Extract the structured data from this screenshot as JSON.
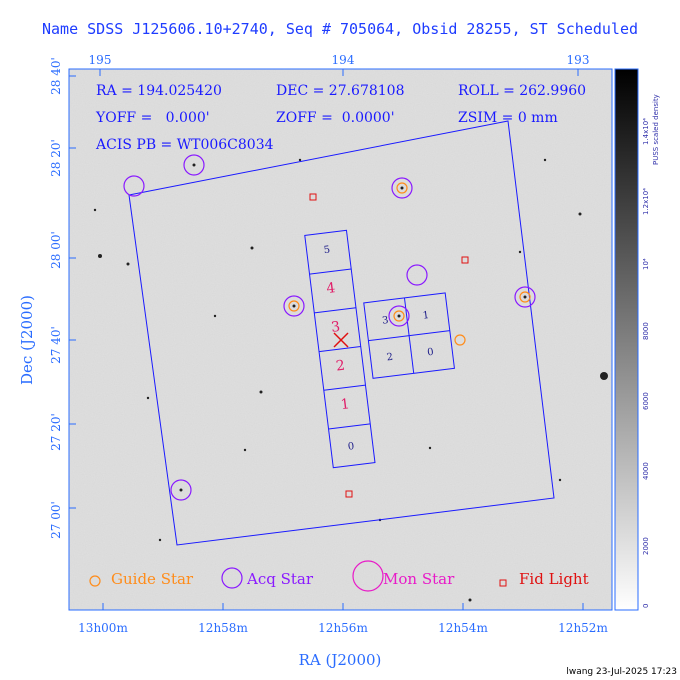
{
  "title": "Name SDSS J125606.10+2740, Seq # 705064, Obsid 28255, ST Scheduled",
  "header": {
    "ra": "RA = 194.025420",
    "dec": "DEC = 27.678108",
    "roll": "ROLL = 262.9960",
    "yoff": "YOFF =   0.000'",
    "zoff": "ZOFF =  0.0000'",
    "zsim": "ZSIM = 0 mm",
    "acis": "ACIS PB = WT006C8034"
  },
  "axes": {
    "xlabel": "RA (J2000)",
    "ylabel": "Dec (J2000)",
    "bottom_ticks": [
      "13h00m",
      "12h58m",
      "12h56m",
      "12h54m",
      "12h52m"
    ],
    "top_ticks": [
      "195",
      "194",
      "193"
    ],
    "left_ticks": [
      "28 40'",
      "28 20'",
      "28 00'",
      "27 40'",
      "27 20'",
      "27 00'"
    ]
  },
  "colorbar": {
    "label": "PUSS scaled density",
    "ticks": [
      "0",
      "2000",
      "4000",
      "6000",
      "8000",
      "10⁴",
      "1.2x10⁴",
      "1.4x10⁴"
    ]
  },
  "ccds": [
    "0",
    "1",
    "2",
    "3",
    "4",
    "5",
    "2",
    "3",
    "0",
    "1"
  ],
  "legend": {
    "guide": "Guide Star",
    "acq": "Acq Star",
    "mon": "Mon Star",
    "fid": "Fid Light"
  },
  "colors": {
    "guide": "#ff8c1a",
    "acq": "#8a1aff",
    "mon": "#e81ac8",
    "fid": "#e01010",
    "frame": "#2a6cff",
    "fov": "#1a1aff"
  },
  "footer": "lwang 23-Jul-2025 17:23"
}
